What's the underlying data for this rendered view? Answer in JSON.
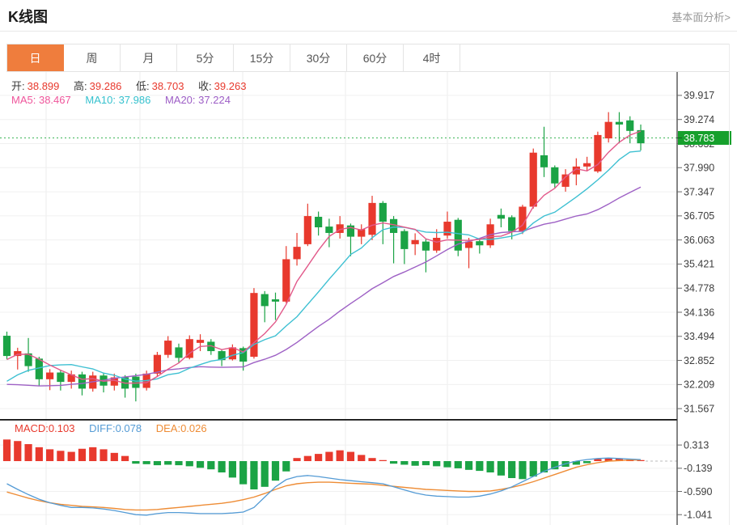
{
  "header": {
    "title": "K线图",
    "link_label": "基本面分析>"
  },
  "tabs": {
    "selected": 0,
    "items": [
      {
        "label": "日"
      },
      {
        "label": "周"
      },
      {
        "label": "月"
      },
      {
        "label": "5分"
      },
      {
        "label": "15分"
      },
      {
        "label": "30分"
      },
      {
        "label": "60分"
      },
      {
        "label": "4时"
      }
    ]
  },
  "overlay": {
    "ohlc": [
      {
        "label": "开:",
        "value": "38.899"
      },
      {
        "label": "高:",
        "value": "39.286"
      },
      {
        "label": "低:",
        "value": "38.703"
      },
      {
        "label": "收:",
        "value": "39.263"
      }
    ],
    "ma": [
      {
        "label": "MA5:",
        "value": "38.467",
        "color": "#ef559b"
      },
      {
        "label": "MA10:",
        "value": "37.986",
        "color": "#35c1ce"
      },
      {
        "label": "MA20:",
        "value": "37.224",
        "color": "#9d5ec6"
      }
    ]
  },
  "macd_header": [
    {
      "label": "MACD:",
      "value": "0.103",
      "color": "#e8392d"
    },
    {
      "label": "DIFF:",
      "value": "0.078",
      "color": "#549bd5"
    },
    {
      "label": "DEA:",
      "value": "0.026",
      "color": "#ee8c35"
    }
  ],
  "price_badge": {
    "value": "38.783",
    "color": "#16a02c"
  },
  "colors": {
    "up": "#e8392d",
    "down": "#1ba345",
    "ma5_line": "#e2598a",
    "ma10_line": "#3ec0d2",
    "ma20_line": "#9e61c5",
    "diff_line": "#549bd5",
    "dea_line": "#ee8c35",
    "accent_tab": "#ef7d3d",
    "link_gray": "#999999",
    "current_price_line": "#3db558",
    "axis_line": "#333333",
    "grid": "#f0f0f0",
    "vgrid": "#ececec"
  },
  "chart_data": {
    "type": "candlestick+macd",
    "main": {
      "title": "K线图 (daily candlestick)",
      "y_axis_labels": [
        "39.917",
        "39.274",
        "38.632",
        "37.990",
        "37.347",
        "36.705",
        "36.063",
        "35.421",
        "34.778",
        "34.136",
        "33.494",
        "32.852",
        "32.209",
        "31.567"
      ],
      "hidden_label_covered_by_badge": "38.632",
      "current_price": 38.783,
      "y_range": [
        31.29,
        40.54
      ],
      "legend": [
        "MA5",
        "MA10",
        "MA20"
      ],
      "candles_ochl": [
        [
          33.51,
          32.97,
          33.62,
          32.88
        ],
        [
          32.97,
          33.1,
          33.19,
          32.61
        ],
        [
          33.04,
          32.7,
          33.45,
          32.55
        ],
        [
          32.9,
          32.35,
          32.95,
          32.18
        ],
        [
          32.35,
          32.53,
          32.62,
          32.06
        ],
        [
          32.53,
          32.28,
          32.6,
          32.05
        ],
        [
          32.28,
          32.48,
          32.58,
          32.1
        ],
        [
          32.48,
          32.1,
          32.55,
          31.92
        ],
        [
          32.1,
          32.45,
          32.55,
          32.02
        ],
        [
          32.45,
          32.18,
          32.52,
          32.0
        ],
        [
          32.18,
          32.4,
          32.5,
          32.05
        ],
        [
          32.4,
          32.1,
          32.46,
          31.86
        ],
        [
          32.42,
          32.12,
          32.5,
          31.76
        ],
        [
          32.12,
          32.5,
          32.58,
          32.05
        ],
        [
          32.5,
          33.0,
          33.08,
          32.42
        ],
        [
          33.0,
          33.38,
          33.5,
          32.92
        ],
        [
          33.2,
          32.92,
          33.3,
          32.8
        ],
        [
          32.92,
          33.42,
          33.52,
          32.88
        ],
        [
          33.32,
          33.4,
          33.55,
          33.1
        ],
        [
          33.35,
          33.1,
          33.42,
          33.0
        ],
        [
          33.1,
          32.86,
          33.15,
          32.7
        ],
        [
          32.88,
          33.2,
          33.28,
          32.85
        ],
        [
          33.18,
          32.82,
          33.22,
          32.58
        ],
        [
          32.95,
          34.65,
          34.78,
          32.9
        ],
        [
          34.62,
          34.3,
          34.7,
          33.87
        ],
        [
          34.48,
          34.42,
          34.66,
          33.93
        ],
        [
          34.42,
          35.55,
          35.9,
          34.38
        ],
        [
          35.55,
          35.88,
          36.25,
          35.38
        ],
        [
          35.95,
          36.7,
          37.03,
          35.9
        ],
        [
          36.68,
          36.4,
          36.82,
          36.18
        ],
        [
          36.42,
          36.25,
          36.63,
          35.87
        ],
        [
          36.25,
          36.48,
          36.7,
          36.1
        ],
        [
          36.45,
          36.15,
          36.5,
          35.63
        ],
        [
          36.15,
          36.35,
          36.48,
          35.95
        ],
        [
          36.2,
          37.05,
          37.24,
          36.06
        ],
        [
          37.05,
          36.55,
          37.1,
          35.95
        ],
        [
          36.62,
          36.25,
          36.7,
          35.44
        ],
        [
          36.3,
          35.82,
          36.35,
          35.42
        ],
        [
          35.95,
          36.06,
          36.24,
          35.66
        ],
        [
          36.02,
          35.78,
          36.08,
          35.2
        ],
        [
          35.78,
          36.12,
          36.35,
          35.72
        ],
        [
          36.18,
          36.55,
          36.82,
          36.1
        ],
        [
          36.6,
          35.78,
          36.65,
          35.63
        ],
        [
          35.85,
          36.02,
          36.12,
          35.31
        ],
        [
          36.03,
          35.92,
          36.1,
          35.7
        ],
        [
          35.92,
          36.48,
          36.63,
          35.85
        ],
        [
          36.73,
          36.63,
          36.9,
          36.4
        ],
        [
          36.67,
          36.3,
          36.72,
          36.08
        ],
        [
          36.3,
          36.95,
          37.0,
          36.22
        ],
        [
          36.95,
          38.39,
          38.5,
          36.9
        ],
        [
          38.32,
          38.0,
          39.08,
          37.74
        ],
        [
          38.0,
          37.57,
          38.05,
          37.46
        ],
        [
          37.48,
          37.81,
          37.95,
          37.35
        ],
        [
          37.81,
          38.02,
          38.24,
          37.52
        ],
        [
          38.02,
          38.11,
          38.28,
          37.9
        ],
        [
          37.89,
          38.86,
          38.95,
          37.85
        ],
        [
          38.77,
          39.21,
          39.47,
          38.66
        ],
        [
          39.21,
          39.14,
          39.47,
          38.64
        ],
        [
          39.25,
          38.97,
          39.36,
          38.64
        ],
        [
          38.99,
          38.64,
          39.14,
          38.45
        ]
      ],
      "prior_closes_for_ma_seed": [
        33.6,
        33.3,
        33.0,
        32.7,
        32.4,
        32.1,
        31.9,
        31.7,
        31.5,
        31.4,
        31.3,
        31.4,
        31.5,
        31.7,
        31.9,
        32.1,
        32.4,
        32.7,
        33.0,
        33.3
      ]
    },
    "macd": {
      "y_axis_labels": [
        "0.313",
        "-0.139",
        "-0.590",
        "-1.041"
      ],
      "y_range": [
        -1.242,
        0.818
      ],
      "hist": [
        0.42,
        0.39,
        0.33,
        0.27,
        0.23,
        0.2,
        0.18,
        0.24,
        0.27,
        0.23,
        0.16,
        0.1,
        -0.05,
        -0.06,
        -0.08,
        -0.07,
        -0.08,
        -0.1,
        -0.13,
        -0.16,
        -0.22,
        -0.32,
        -0.45,
        -0.55,
        -0.5,
        -0.38,
        -0.2,
        0.06,
        0.1,
        0.14,
        0.18,
        0.21,
        0.18,
        0.12,
        0.06,
        0.02,
        -0.05,
        -0.07,
        -0.09,
        -0.08,
        -0.1,
        -0.12,
        -0.14,
        -0.17,
        -0.19,
        -0.22,
        -0.28,
        -0.33,
        -0.35,
        -0.3,
        -0.22,
        -0.16,
        -0.11,
        -0.07,
        -0.04,
        0.04,
        0.06,
        0.05,
        0.03,
        0.02
      ],
      "diff": [
        -0.44,
        -0.55,
        -0.65,
        -0.74,
        -0.81,
        -0.86,
        -0.9,
        -0.9,
        -0.91,
        -0.93,
        -0.96,
        -1.0,
        -1.04,
        -1.05,
        -1.02,
        -1.0,
        -1.0,
        -1.01,
        -1.02,
        -1.02,
        -1.02,
        -1.01,
        -0.99,
        -0.9,
        -0.7,
        -0.5,
        -0.36,
        -0.3,
        -0.28,
        -0.3,
        -0.33,
        -0.36,
        -0.38,
        -0.4,
        -0.42,
        -0.44,
        -0.5,
        -0.56,
        -0.62,
        -0.66,
        -0.68,
        -0.69,
        -0.7,
        -0.7,
        -0.68,
        -0.64,
        -0.58,
        -0.5,
        -0.4,
        -0.3,
        -0.2,
        -0.12,
        -0.05,
        0.0,
        0.03,
        0.05,
        0.06,
        0.05,
        0.04,
        0.03
      ],
      "dea": [
        -0.6,
        -0.66,
        -0.72,
        -0.77,
        -0.81,
        -0.84,
        -0.86,
        -0.88,
        -0.89,
        -0.9,
        -0.92,
        -0.94,
        -0.95,
        -0.95,
        -0.94,
        -0.92,
        -0.9,
        -0.88,
        -0.86,
        -0.84,
        -0.82,
        -0.79,
        -0.75,
        -0.7,
        -0.63,
        -0.55,
        -0.48,
        -0.44,
        -0.42,
        -0.41,
        -0.41,
        -0.42,
        -0.43,
        -0.44,
        -0.45,
        -0.47,
        -0.49,
        -0.51,
        -0.53,
        -0.55,
        -0.56,
        -0.57,
        -0.58,
        -0.59,
        -0.59,
        -0.58,
        -0.55,
        -0.51,
        -0.46,
        -0.4,
        -0.33,
        -0.26,
        -0.19,
        -0.12,
        -0.07,
        -0.03,
        0.0,
        0.01,
        0.02,
        0.02
      ]
    }
  }
}
